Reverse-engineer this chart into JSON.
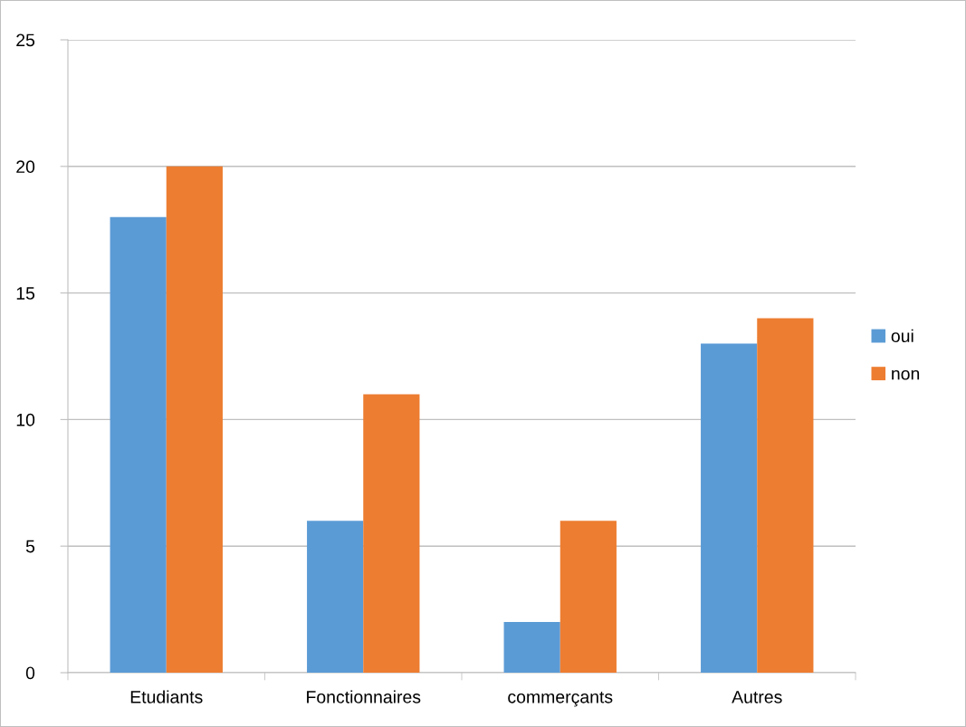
{
  "chart_data": {
    "type": "bar",
    "categories": [
      "Etudiants",
      "Fonctionnaires",
      "commerçants",
      "Autres"
    ],
    "series": [
      {
        "name": "oui",
        "color": "#5b9bd5",
        "values": [
          18,
          6,
          2,
          13
        ]
      },
      {
        "name": "non",
        "color": "#ed7d31",
        "values": [
          20,
          11,
          6,
          14
        ]
      }
    ],
    "ylim": [
      0,
      25
    ],
    "yticks": [
      0,
      5,
      10,
      15,
      20,
      25
    ],
    "grid": "y",
    "legend": "right"
  }
}
